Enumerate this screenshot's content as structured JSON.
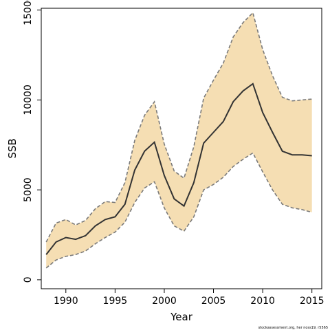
{
  "chart_data": {
    "type": "area",
    "xlabel": "Year",
    "ylabel": "SSB",
    "xlim": [
      1987.5,
      2016
    ],
    "ylim": [
      -500,
      15100
    ],
    "xticks": [
      1990,
      1995,
      2000,
      2005,
      2010,
      2015
    ],
    "yticks": [
      0,
      5000,
      10000,
      15000
    ],
    "x": [
      1988,
      1989,
      1990,
      1991,
      1992,
      1993,
      1994,
      1995,
      1996,
      1997,
      1998,
      1999,
      2000,
      2001,
      2002,
      2003,
      2004,
      2005,
      2006,
      2007,
      2008,
      2009,
      2010,
      2011,
      2012,
      2013,
      2014,
      2015
    ],
    "series": [
      {
        "role": "estimate",
        "values": [
          1400,
          2100,
          2350,
          2250,
          2450,
          3000,
          3350,
          3500,
          4200,
          6100,
          7150,
          7650,
          5800,
          4500,
          4100,
          5400,
          7600,
          8200,
          8800,
          9900,
          10500,
          10900,
          9300,
          8200,
          7150,
          6950,
          6950,
          6900
        ]
      },
      {
        "role": "lower",
        "values": [
          650,
          1100,
          1300,
          1400,
          1600,
          2000,
          2350,
          2650,
          3200,
          4300,
          5100,
          5450,
          4000,
          3000,
          2700,
          3500,
          5000,
          5300,
          5700,
          6300,
          6700,
          7050,
          6000,
          5000,
          4200,
          4000,
          3900,
          3750
        ]
      },
      {
        "role": "upper",
        "values": [
          2100,
          3150,
          3350,
          3050,
          3300,
          3950,
          4350,
          4300,
          5400,
          7750,
          9150,
          9900,
          7550,
          6050,
          5650,
          7400,
          10100,
          11100,
          12050,
          13500,
          14300,
          14850,
          12800,
          11350,
          10150,
          9950,
          10000,
          10050
        ]
      }
    ],
    "colors": {
      "band": "#f5deb3",
      "estimate": "#333333",
      "bounds": "#7a7a7a"
    }
  },
  "credit": "stockassessment.org, her noss19, r5565"
}
